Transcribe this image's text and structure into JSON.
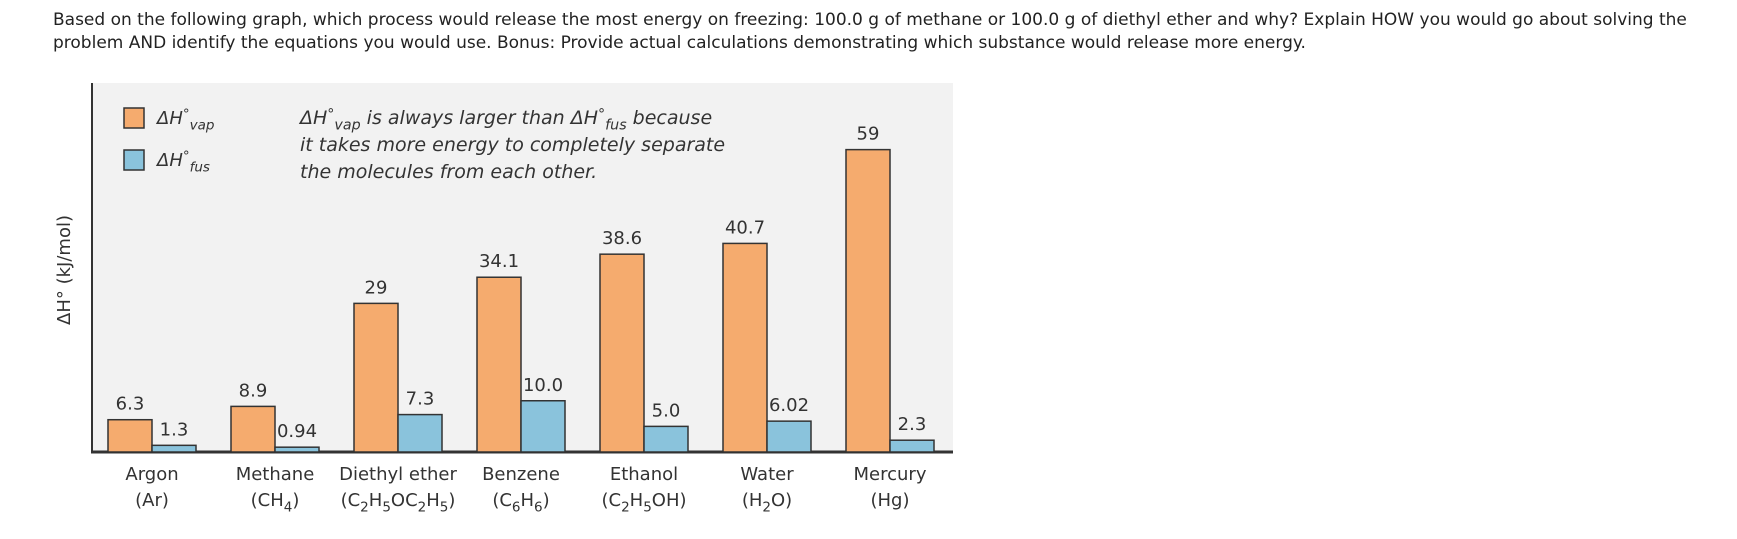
{
  "question": "Based on the following graph, which process would release the most energy on freezing: 100.0 g of methane or 100.0 g of diethyl ether and why? Explain HOW you would go about solving the problem AND identify the equations you would use. Bonus:  Provide actual calculations demonstrating which substance would release more energy.",
  "chart_data": {
    "type": "bar",
    "y_label": "ΔH° (kJ/mol)",
    "annotation": [
      "ΔH°vap is always larger than ΔH°fus because",
      "it takes more energy to completely separate",
      "the molecules from each other."
    ],
    "categories": [
      "Argon",
      "Methane",
      "Diethyl ether",
      "Benzene",
      "Ethanol",
      "Water",
      "Mercury"
    ],
    "formulas": [
      "(Ar)",
      "(CH4)",
      "(C2H5OC2H5)",
      "(C6H6)",
      "(C2H5OH)",
      "(H2O)",
      "(Hg)"
    ],
    "series": [
      {
        "name": "ΔH°vap",
        "color": "#f5ab6e",
        "values": [
          6.3,
          8.9,
          29,
          34.1,
          38.6,
          40.7,
          59
        ],
        "value_labels": [
          "6.3",
          "8.9",
          "29",
          "34.1",
          "38.6",
          "40.7",
          "59"
        ]
      },
      {
        "name": "ΔH°fus",
        "color": "#8ac3dc",
        "values": [
          1.3,
          0.94,
          7.3,
          10.0,
          5.0,
          6.02,
          2.3
        ],
        "value_labels": [
          "1.3",
          "0.94",
          "7.3",
          "10.0",
          "5.0",
          "6.02",
          "2.3"
        ]
      }
    ],
    "ylim": [
      0,
      72
    ],
    "legend": "upper left"
  }
}
